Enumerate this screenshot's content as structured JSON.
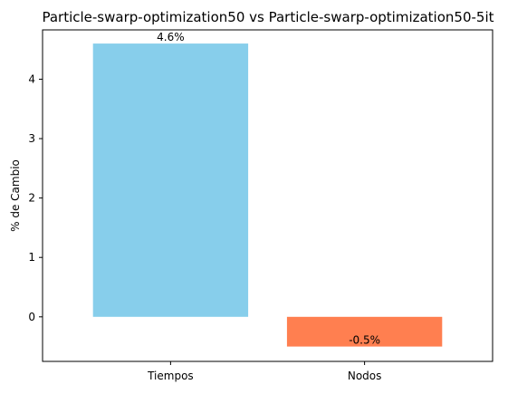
{
  "chart_data": {
    "type": "bar",
    "title": "Particle-swarp-optimization50 vs Particle-swarp-optimization50-5it",
    "xlabel": "",
    "ylabel": "% de Cambio",
    "categories": [
      "Tiempos",
      "Nodos"
    ],
    "values": [
      4.6,
      -0.5
    ],
    "data_labels": [
      "4.6%",
      "-0.5%"
    ],
    "colors": [
      "#87ceeb",
      "#ff7f50"
    ],
    "ylim": [
      -0.75,
      4.83
    ],
    "yticks": [
      0,
      1,
      2,
      3,
      4
    ],
    "ytick_labels": [
      "0",
      "1",
      "2",
      "3",
      "4"
    ],
    "grid": false,
    "legend": "none"
  }
}
